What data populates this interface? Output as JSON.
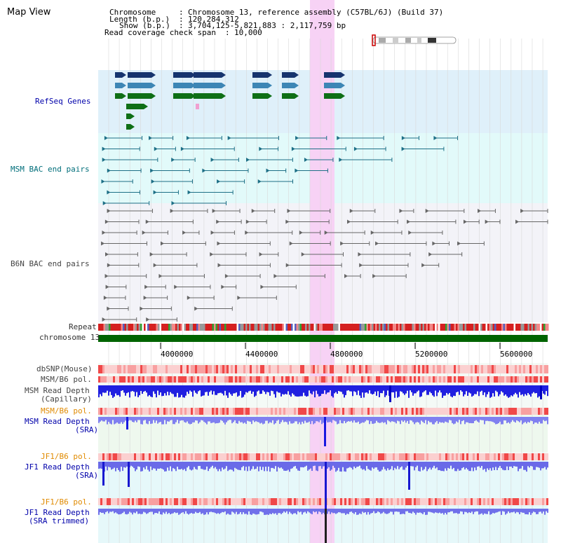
{
  "header": {
    "title": "Map View",
    "chromosome_label": "Chromosome",
    "chromosome_value": "Chromosome 13, reference assembly (C57BL/6J) (Build 37)",
    "length_label": "Length (b.p.)",
    "length_value": "120,284,312",
    "show_label": "Show (b.p.)",
    "show_value": "3,704,125-5,821,883 : 2,117,759 bp",
    "coverage_label": "Read coverage check span",
    "coverage_value": "10,000"
  },
  "tracks": {
    "refseq": "RefSeq Genes",
    "msm_bac": "MSM BAC end pairs",
    "b6n_bac": "B6N BAC end pairs",
    "repeat": "Repeat",
    "chromosome": "chromosome 13",
    "dbsnp": "dbSNP(Mouse)",
    "msm_b6_pol": "MSM/B6 pol.",
    "msm_depth_cap_1": "MSM Read Depth",
    "msm_depth_cap_2": "(Capillary)",
    "msm_b6_pol2": "MSM/B6 pol.",
    "msm_depth_sra_1": "MSM Read Depth",
    "msm_depth_sra_2": "(SRA)",
    "jf1_b6_pol": "JF1/B6 pol.",
    "jf1_depth_sra_1": "JF1 Read Depth",
    "jf1_depth_sra_2": "(SRA)",
    "jf1_b6_pol2": "JF1/B6 pol.",
    "jf1_depth_trim_1": "JF1 Read Depth",
    "jf1_depth_trim_2": "(SRA trimmed)"
  },
  "axis": {
    "ticks": [
      "4000000",
      "4400000",
      "4800000",
      "5200000",
      "5600000"
    ]
  },
  "colors": {
    "refseq_bg": "#dff0fa",
    "msm_bg": "#e2fafa",
    "highlight": "#f7d2f5",
    "label_blue": "#0000aa",
    "label_teal": "#006e7a",
    "label_orange": "#e08a00",
    "label_gray": "#333333",
    "chromosome_bar": "#006400"
  }
}
